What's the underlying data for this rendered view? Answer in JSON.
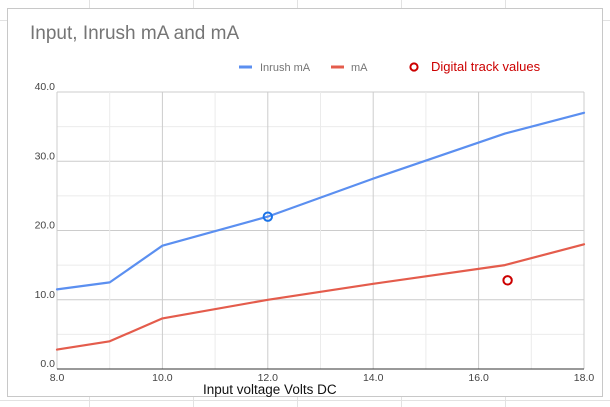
{
  "chart_data": {
    "type": "line",
    "title": "Input, Inrush mA and mA",
    "xlabel": "Input voltage Volts DC",
    "ylabel": "",
    "xlim": [
      8.0,
      18.0
    ],
    "ylim": [
      0.0,
      40.0
    ],
    "x_ticks": [
      "8.0",
      "10.0",
      "12.0",
      "14.0",
      "16.0",
      "18.0"
    ],
    "y_ticks": [
      "0.0",
      "10.0",
      "20.0",
      "30.0",
      "40.0"
    ],
    "grid": true,
    "legend_position": "top",
    "series": [
      {
        "name": "Inrush mA",
        "color": "#5b8ff0",
        "x": [
          8.0,
          9.0,
          10.0,
          12.0,
          14.0,
          16.5,
          18.0
        ],
        "y": [
          11.5,
          12.5,
          17.8,
          22.0,
          27.5,
          34.0,
          37.0
        ]
      },
      {
        "name": "mA",
        "color": "#e45c4c",
        "x": [
          8.0,
          9.0,
          10.0,
          12.0,
          14.0,
          16.5,
          18.0
        ],
        "y": [
          2.8,
          4.0,
          7.3,
          10.0,
          12.3,
          15.0,
          18.0
        ]
      }
    ],
    "annotations": [
      {
        "name": "Digital track values",
        "color": "#cc0000",
        "points": [
          {
            "x": 16.55,
            "y": 12.8
          }
        ]
      },
      {
        "name": "",
        "color": "#1a73e8",
        "points": [
          {
            "x": 12.0,
            "y": 22.0
          }
        ]
      }
    ]
  }
}
